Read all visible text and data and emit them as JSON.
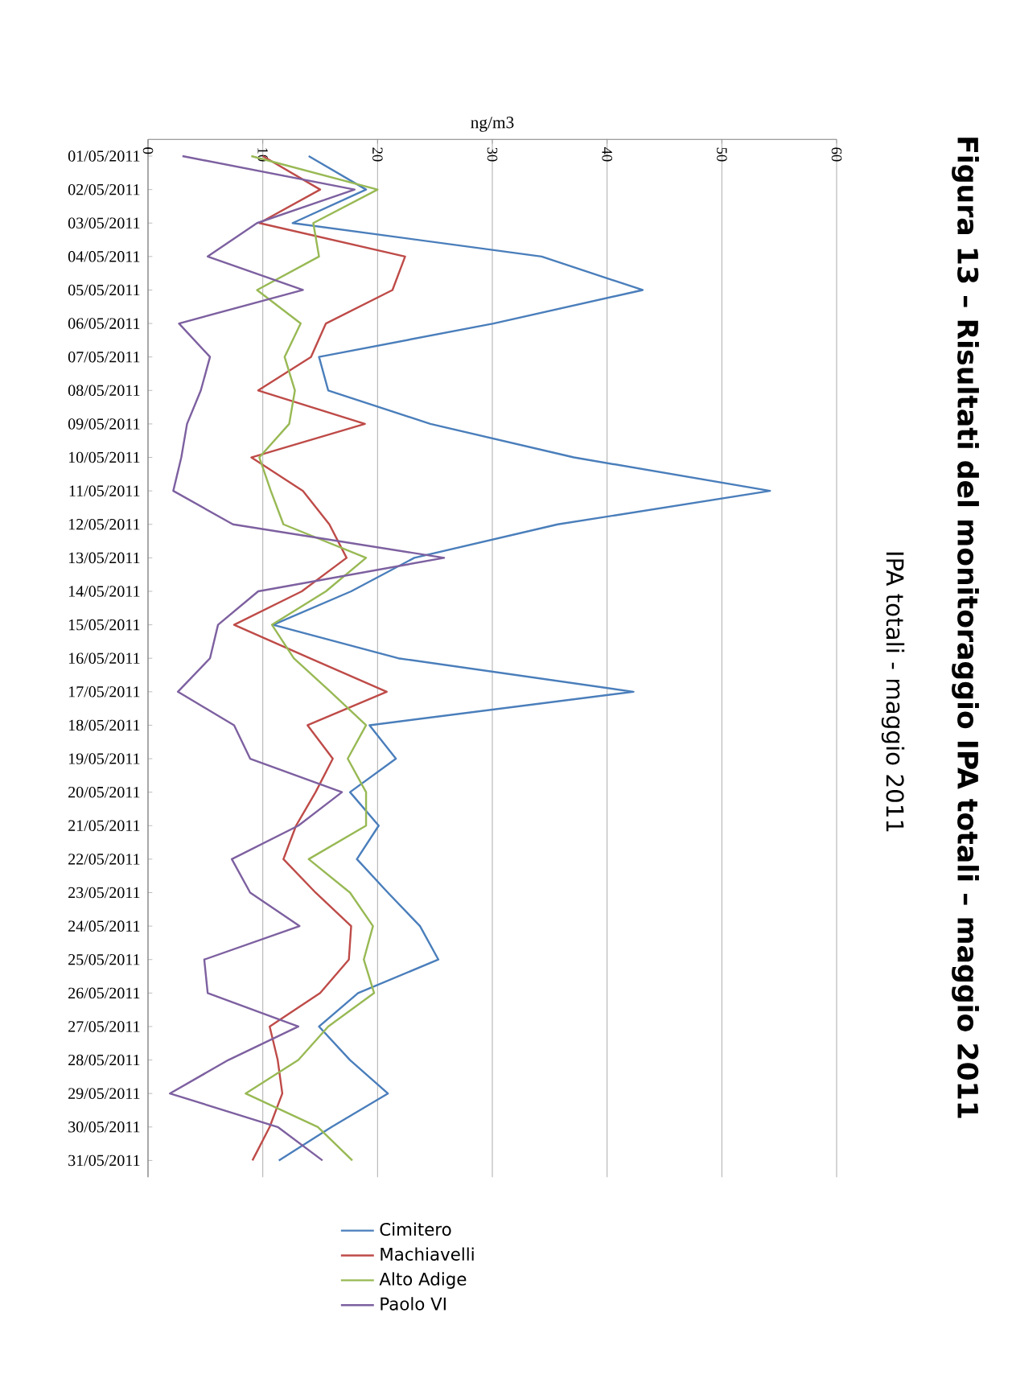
{
  "chart_data": {
    "type": "line",
    "orientation": "horizontal",
    "title": "Figura 13 – Risultati del monitoraggio IPA totali – maggio 2011",
    "subtitle": "IPA totali - maggio 2011",
    "xlabel": "ng/m3",
    "categories": [
      "01/05/2011",
      "02/05/2011",
      "03/05/2011",
      "04/05/2011",
      "05/05/2011",
      "06/05/2011",
      "07/05/2011",
      "08/05/2011",
      "09/05/2011",
      "10/05/2011",
      "11/05/2011",
      "12/05/2011",
      "13/05/2011",
      "14/05/2011",
      "15/05/2011",
      "16/05/2011",
      "17/05/2011",
      "18/05/2011",
      "19/05/2011",
      "20/05/2011",
      "21/05/2011",
      "22/05/2011",
      "23/05/2011",
      "24/05/2011",
      "25/05/2011",
      "26/05/2011",
      "27/05/2011",
      "28/05/2011",
      "29/05/2011",
      "30/05/2011",
      "31/05/2011"
    ],
    "series": [
      {
        "name": "Cimitero",
        "color": "#4a7ebb",
        "values": [
          14,
          19,
          12.6,
          34.3,
          43.1,
          30.1,
          14.9,
          15.7,
          24.6,
          37.1,
          54.2,
          35.7,
          23.2,
          17.7,
          10.9,
          21.8,
          42.3,
          19.3,
          21.6,
          17.6,
          20.1,
          18.2,
          20.9,
          23.7,
          25.3,
          18.3,
          14.9,
          17.6,
          20.9,
          16.0,
          11.4
        ]
      },
      {
        "name": "Machiavelli",
        "color": "#be4b48",
        "values": [
          10,
          15,
          9.7,
          22.4,
          21.3,
          15.5,
          14.2,
          9.6,
          18.9,
          9.0,
          13.5,
          15.8,
          17.3,
          13.4,
          7.5,
          14.1,
          20.8,
          13.9,
          16.1,
          14.6,
          12.9,
          11.8,
          14.6,
          17.7,
          17.5,
          15.0,
          10.6,
          11.3,
          11.7,
          10.6,
          9.1
        ]
      },
      {
        "name": "Alto Adige",
        "color": "#98b954",
        "values": [
          9,
          20,
          14.4,
          14.9,
          9.5,
          13.3,
          11.9,
          12.8,
          12.3,
          9.7,
          10.7,
          11.8,
          19.0,
          15.5,
          10.8,
          12.7,
          15.9,
          19.0,
          17.4,
          19.0,
          19.0,
          14.0,
          17.6,
          19.6,
          18.8,
          19.7,
          15.7,
          13.1,
          8.5,
          14.8,
          17.8
        ]
      },
      {
        "name": "Paolo VI",
        "color": "#7d60a0",
        "values": [
          3,
          18,
          9.5,
          5.2,
          13.5,
          2.7,
          5.4,
          4.6,
          3.4,
          2.9,
          2.2,
          7.4,
          25.8,
          9.6,
          6.1,
          5.4,
          2.6,
          7.5,
          8.9,
          16.9,
          13.1,
          7.3,
          8.9,
          13.2,
          4.9,
          5.2,
          13.1,
          7.0,
          1.9,
          11.3,
          15.2
        ]
      }
    ],
    "xlim": [
      0,
      60
    ],
    "xticks": [
      0,
      10,
      20,
      30,
      40,
      50,
      60
    ],
    "grid": "x",
    "legend": "bottom",
    "marker": "none",
    "line_style": "solid"
  }
}
